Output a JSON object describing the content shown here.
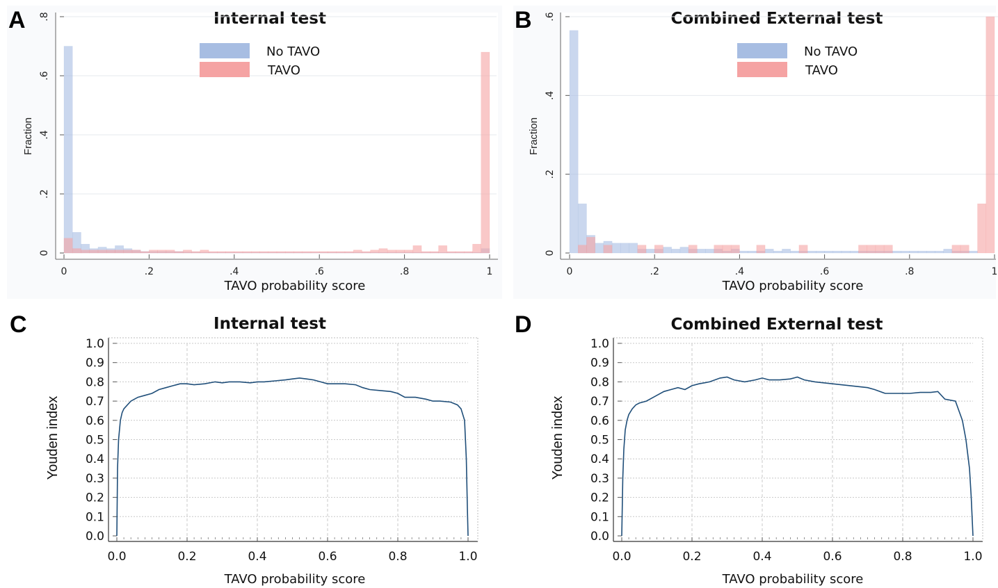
{
  "chart_data": [
    {
      "panel": "A",
      "type": "bar",
      "title": "Internal test",
      "xlabel": "TAVO probability score",
      "ylabel": "Fraction",
      "xlim": [
        0,
        1
      ],
      "ylim": [
        0,
        0.8
      ],
      "xticks": [
        "0",
        ".2",
        ".4",
        ".6",
        ".8",
        "1"
      ],
      "yticks": [
        "0",
        ".2",
        ".4",
        ".6",
        ".8"
      ],
      "grid": true,
      "legend_position": "top-center",
      "colors": {
        "No TAVO": "#a7bde2",
        "TAVO": "#f5a3a3"
      },
      "series": [
        {
          "name": "No TAVO",
          "bin_start": 0,
          "bin_width": 0.02,
          "values": [
            0.7,
            0.07,
            0.03,
            0.015,
            0.02,
            0.015,
            0.025,
            0.015,
            0.01,
            0.005,
            0.005,
            0.005,
            0.005,
            0.005,
            0.003,
            0.003,
            0.002,
            0.002,
            0.002,
            0.002,
            0.002,
            0.002,
            0.002,
            0.002,
            0.002,
            0.002,
            0.002,
            0.002,
            0.002,
            0.002,
            0.002,
            0.002,
            0.002,
            0.002,
            0.002,
            0.002,
            0.002,
            0.002,
            0.002,
            0.002,
            0.002,
            0.002,
            0.002,
            0.002,
            0.002,
            0.002,
            0.002,
            0.002,
            0.002,
            0.015
          ]
        },
        {
          "name": "TAVO",
          "bin_start": 0,
          "bin_width": 0.02,
          "values": [
            0.05,
            0.015,
            0.01,
            0.01,
            0.01,
            0.01,
            0.01,
            0.01,
            0.01,
            0.005,
            0.01,
            0.01,
            0.01,
            0.005,
            0.01,
            0.005,
            0.01,
            0.005,
            0.005,
            0.005,
            0.005,
            0.005,
            0.005,
            0.005,
            0.005,
            0.005,
            0.005,
            0.005,
            0.005,
            0.005,
            0.005,
            0.005,
            0.005,
            0.005,
            0.01,
            0.005,
            0.01,
            0.015,
            0.01,
            0.01,
            0.01,
            0.025,
            0.005,
            0.005,
            0.025,
            0.005,
            0.005,
            0.005,
            0.03,
            0.68
          ]
        }
      ]
    },
    {
      "panel": "B",
      "type": "bar",
      "title": "Combined External test",
      "xlabel": "TAVO probability score",
      "ylabel": "Fraction",
      "xlim": [
        0,
        1
      ],
      "ylim": [
        0,
        0.6
      ],
      "xticks": [
        "0",
        ".2",
        ".4",
        ".6",
        ".8",
        "1"
      ],
      "yticks": [
        "0",
        ".2",
        ".4",
        ".6"
      ],
      "grid": true,
      "legend_position": "top-center",
      "colors": {
        "No TAVO": "#a7bde2",
        "TAVO": "#f5a3a3"
      },
      "series": [
        {
          "name": "No TAVO",
          "bin_start": 0,
          "bin_width": 0.02,
          "values": [
            0.565,
            0.125,
            0.045,
            0.025,
            0.03,
            0.025,
            0.025,
            0.025,
            0.01,
            0.01,
            0.01,
            0.015,
            0.01,
            0.015,
            0.01,
            0.01,
            0.01,
            0.01,
            0.005,
            0.01,
            0.005,
            0.005,
            0.005,
            0.01,
            0.005,
            0.01,
            0.005,
            0.005,
            0.005,
            0.005,
            0.005,
            0.005,
            0.005,
            0.005,
            0.005,
            0.005,
            0.005,
            0.005,
            0.005,
            0.005,
            0.005,
            0.005,
            0.005,
            0.005,
            0.01,
            0.005,
            0.005,
            0.005,
            0,
            0
          ]
        },
        {
          "name": "TAVO",
          "bin_start": 0,
          "bin_width": 0.02,
          "values": [
            0,
            0.02,
            0.04,
            0,
            0.02,
            0,
            0,
            0,
            0.02,
            0,
            0.02,
            0,
            0,
            0,
            0.02,
            0,
            0,
            0.02,
            0.02,
            0.02,
            0,
            0,
            0.02,
            0,
            0,
            0,
            0,
            0.02,
            0,
            0,
            0,
            0,
            0,
            0,
            0.02,
            0.02,
            0.02,
            0.02,
            0,
            0,
            0,
            0,
            0,
            0,
            0,
            0.02,
            0.02,
            0,
            0.125,
            0.6
          ]
        }
      ]
    },
    {
      "panel": "C",
      "type": "line",
      "title": "Internal test",
      "xlabel": "TAVO probability score",
      "ylabel": "Youden index",
      "xlim": [
        0,
        1
      ],
      "ylim": [
        0,
        1
      ],
      "xticks": [
        "0.0",
        "0.2",
        "0.4",
        "0.6",
        "0.8",
        "1.0"
      ],
      "yticks": [
        "0.0",
        "0.1",
        "0.2",
        "0.3",
        "0.4",
        "0.5",
        "0.6",
        "0.7",
        "0.8",
        "0.9",
        "1.0"
      ],
      "grid": true,
      "color": "#1f4e79",
      "x": [
        0,
        0.002,
        0.005,
        0.01,
        0.015,
        0.02,
        0.03,
        0.04,
        0.05,
        0.06,
        0.08,
        0.1,
        0.12,
        0.14,
        0.16,
        0.18,
        0.2,
        0.22,
        0.25,
        0.28,
        0.3,
        0.32,
        0.35,
        0.38,
        0.4,
        0.42,
        0.45,
        0.48,
        0.5,
        0.52,
        0.54,
        0.56,
        0.58,
        0.6,
        0.62,
        0.65,
        0.68,
        0.7,
        0.72,
        0.75,
        0.78,
        0.8,
        0.82,
        0.85,
        0.88,
        0.9,
        0.92,
        0.95,
        0.97,
        0.98,
        0.99,
        0.995,
        0.998,
        1.0
      ],
      "y": [
        0,
        0.35,
        0.5,
        0.6,
        0.64,
        0.66,
        0.68,
        0.7,
        0.71,
        0.72,
        0.73,
        0.74,
        0.76,
        0.77,
        0.78,
        0.79,
        0.79,
        0.785,
        0.79,
        0.8,
        0.795,
        0.8,
        0.8,
        0.795,
        0.8,
        0.8,
        0.805,
        0.81,
        0.815,
        0.82,
        0.815,
        0.81,
        0.8,
        0.79,
        0.79,
        0.79,
        0.785,
        0.77,
        0.76,
        0.755,
        0.75,
        0.74,
        0.72,
        0.72,
        0.71,
        0.7,
        0.7,
        0.695,
        0.68,
        0.66,
        0.6,
        0.4,
        0.15,
        0
      ]
    },
    {
      "panel": "D",
      "type": "line",
      "title": "Combined External test",
      "xlabel": "TAVO probability score",
      "ylabel": "Youden index",
      "xlim": [
        0,
        1
      ],
      "ylim": [
        0,
        1
      ],
      "xticks": [
        "0.0",
        "0.2",
        "0.4",
        "0.6",
        "0.8",
        "1.0"
      ],
      "yticks": [
        "0.0",
        "0.1",
        "0.2",
        "0.3",
        "0.4",
        "0.5",
        "0.6",
        "0.7",
        "0.8",
        "0.9",
        "1.0"
      ],
      "grid": true,
      "color": "#1f4e79",
      "x": [
        0,
        0.003,
        0.006,
        0.01,
        0.015,
        0.02,
        0.03,
        0.04,
        0.05,
        0.07,
        0.09,
        0.1,
        0.12,
        0.14,
        0.16,
        0.18,
        0.2,
        0.22,
        0.25,
        0.28,
        0.3,
        0.32,
        0.35,
        0.38,
        0.4,
        0.42,
        0.45,
        0.48,
        0.5,
        0.52,
        0.55,
        0.6,
        0.65,
        0.7,
        0.72,
        0.75,
        0.78,
        0.8,
        0.82,
        0.85,
        0.88,
        0.9,
        0.92,
        0.95,
        0.97,
        0.98,
        0.99,
        0.995,
        0.998,
        1.0
      ],
      "y": [
        0,
        0.3,
        0.45,
        0.55,
        0.6,
        0.63,
        0.66,
        0.68,
        0.69,
        0.7,
        0.72,
        0.73,
        0.75,
        0.76,
        0.77,
        0.76,
        0.78,
        0.79,
        0.8,
        0.82,
        0.825,
        0.81,
        0.8,
        0.81,
        0.82,
        0.81,
        0.81,
        0.815,
        0.825,
        0.81,
        0.8,
        0.79,
        0.78,
        0.77,
        0.76,
        0.74,
        0.74,
        0.74,
        0.74,
        0.745,
        0.745,
        0.75,
        0.71,
        0.7,
        0.6,
        0.5,
        0.35,
        0.2,
        0.08,
        0
      ]
    }
  ],
  "panels": {
    "A": {
      "letter": "A",
      "title": "Internal test",
      "xlabel": "TAVO probability score",
      "ylabel": "Fraction",
      "legend": [
        {
          "label": "No TAVO"
        },
        {
          "label": "TAVO"
        }
      ]
    },
    "B": {
      "letter": "B",
      "title": "Combined External test",
      "xlabel": "TAVO probability score",
      "ylabel": "Fraction",
      "legend": [
        {
          "label": "No TAVO"
        },
        {
          "label": "TAVO"
        }
      ]
    },
    "C": {
      "letter": "C",
      "title": "Internal test",
      "xlabel": "TAVO probability score",
      "ylabel": "Youden index"
    },
    "D": {
      "letter": "D",
      "title": "Combined External test",
      "xlabel": "TAVO probability score",
      "ylabel": "Youden index"
    }
  }
}
